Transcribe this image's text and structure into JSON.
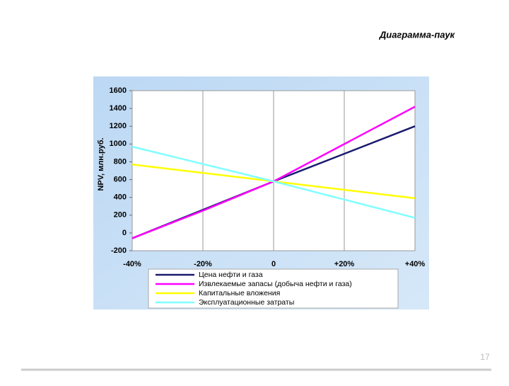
{
  "chart_data": {
    "type": "line",
    "title": "Диаграмма-паук",
    "y_label": "NPV, млн.руб.",
    "x": [
      -40,
      -20,
      0,
      20,
      40
    ],
    "xlim": [
      -40,
      40
    ],
    "xticks": [
      {
        "value": -40,
        "label": "-40%"
      },
      {
        "value": -20,
        "label": "-20%"
      },
      0,
      {
        "value": 20,
        "label": "+20%"
      },
      {
        "value": 40,
        "label": "+40%"
      }
    ],
    "ylim": [
      -200,
      1600
    ],
    "yticks": [
      -200,
      0,
      200,
      400,
      600,
      800,
      1000,
      1200,
      1400,
      1600
    ],
    "grid": "x",
    "legend": "bottom",
    "series": [
      {
        "name": "Цена нефти и газа",
        "color": "#1a1a70",
        "values": [
          -60,
          260,
          580,
          890,
          1200
        ]
      },
      {
        "name": "Извлекаемые запасы (добыча нефти и газа)",
        "color": "#ff00ff",
        "values": [
          -60,
          250,
          580,
          1000,
          1420
        ]
      },
      {
        "name": "Капитальные вложения",
        "color": "#ffff00",
        "values": [
          770,
          675,
          580,
          485,
          390
        ]
      },
      {
        "name": "Эксплуатационные затраты",
        "color": "#80ffff",
        "values": [
          970,
          775,
          580,
          375,
          170
        ]
      }
    ]
  },
  "slide": {
    "page_number": "17"
  }
}
